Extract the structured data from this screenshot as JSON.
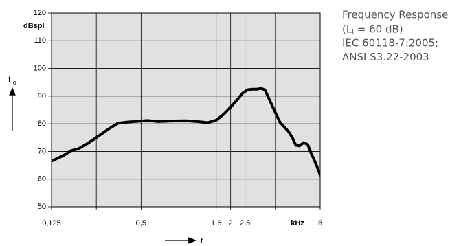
{
  "chart_data": {
    "type": "line",
    "annotation": [
      "Frequency Response",
      [
        "(L",
        "i",
        " = 60 dB)"
      ],
      "IEC 60118-7:2005;",
      "ANSI S3.22-2003"
    ],
    "y_unit": "dBspl",
    "x_unit": "kHz",
    "ylabel": [
      "L",
      "o"
    ],
    "xlabel": "f",
    "xscale": "log",
    "xlim": [
      0.125,
      8
    ],
    "ylim": [
      50,
      120
    ],
    "xticks": [
      {
        "value": 0.125,
        "label": "0,125"
      },
      {
        "value": 0.5,
        "label": "0,5"
      },
      {
        "value": 1.6,
        "label": "1,6"
      },
      2,
      {
        "value": 2.5,
        "label": "2,5"
      },
      8
    ],
    "xgrid": [
      0.25,
      1,
      4
    ],
    "yticks": [
      50,
      60,
      70,
      80,
      90,
      100,
      110,
      120
    ],
    "grid": true,
    "color": "#000000",
    "x": [
      0.125,
      0.15,
      0.17,
      0.19,
      0.22,
      0.25,
      0.3,
      0.35,
      0.4,
      0.5,
      0.55,
      0.65,
      0.8,
      1.0,
      1.2,
      1.4,
      1.6,
      1.8,
      2.0,
      2.2,
      2.4,
      2.6,
      2.8,
      3.0,
      3.2,
      3.4,
      3.7,
      4.0,
      4.3,
      4.6,
      4.9,
      5.2,
      5.5,
      5.8,
      6.2,
      6.6,
      7.0,
      7.5,
      8.0
    ],
    "values": [
      66.5,
      68.5,
      70.3,
      71,
      73,
      75,
      78,
      80.2,
      80.6,
      81,
      81.2,
      80.8,
      81,
      81.1,
      80.8,
      80.4,
      81.3,
      83.5,
      86,
      88.5,
      91,
      92.3,
      92.5,
      92.5,
      92.8,
      92.3,
      88,
      84,
      80.5,
      78.8,
      77.2,
      75,
      72.2,
      72,
      73.2,
      72.5,
      69,
      65.5,
      61.5
    ]
  }
}
